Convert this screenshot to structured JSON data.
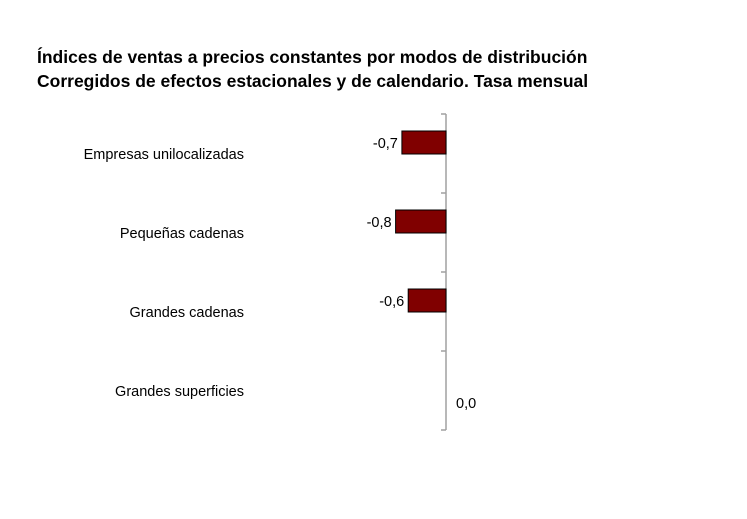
{
  "chart_data": {
    "type": "bar",
    "orientation": "horizontal",
    "title": "Índices de ventas a precios constantes por modos de distribución",
    "subtitle": "Corregidos de efectos estacionales y de calendario. Tasa mensual",
    "categories": [
      "Empresas unilocalizadas",
      "Pequeñas cadenas",
      "Grandes cadenas",
      "Grandes superficies"
    ],
    "values": [
      -0.7,
      -0.8,
      -0.6,
      0.0
    ],
    "value_labels": [
      "-0,7",
      "-0,8",
      "-0,6",
      "0,0"
    ],
    "bar_color": "#800000",
    "xlabel": "",
    "ylabel": "",
    "grid": false,
    "legend": "none"
  }
}
